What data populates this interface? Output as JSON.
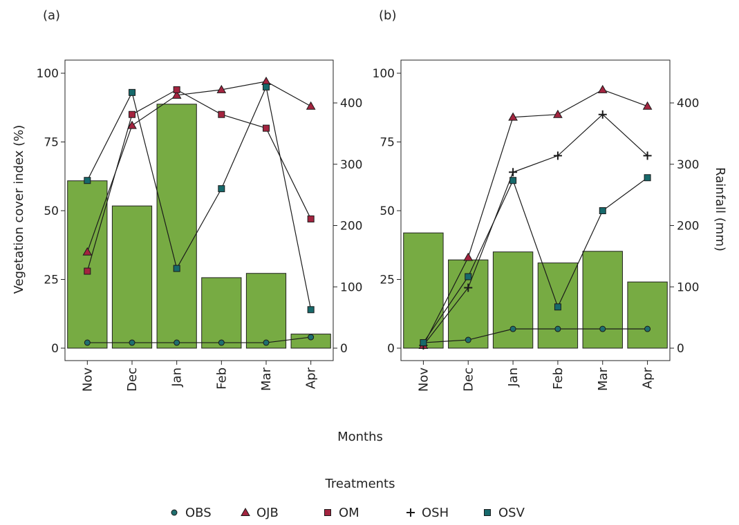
{
  "colors": {
    "bar_fill": "#77ab43",
    "bar_stroke": "#1e1e1e",
    "line": "#1a1a1a",
    "OBS": "#1f6f6f",
    "OJB": "#a3243f",
    "OM": "#a3243f",
    "OSH": "#1a1a1a",
    "OSV": "#17696b"
  },
  "xlabel": "Months",
  "ylabel_left": "Vegetation cover index (%)",
  "ylabel_right": "Rainfall (mm)",
  "legend": {
    "title": "Treatments",
    "items": [
      {
        "name": "OBS",
        "marker": "circle"
      },
      {
        "name": "OJB",
        "marker": "triangle"
      },
      {
        "name": "OM",
        "marker": "square"
      },
      {
        "name": "OSH",
        "marker": "plus"
      },
      {
        "name": "OSV",
        "marker": "square"
      }
    ]
  },
  "chart_data": [
    {
      "panel": "(a)",
      "type": "bar+line",
      "categories": [
        "Nov",
        "Dec",
        "Jan",
        "Feb",
        "Mar",
        "Apr"
      ],
      "ylim_left": [
        0,
        100
      ],
      "left_ticks": [
        0,
        25,
        50,
        75,
        100
      ],
      "ylim_right": [
        0,
        430
      ],
      "right_ticks": [
        0,
        100,
        200,
        300,
        400
      ],
      "rainfall": [
        273,
        232,
        398,
        115,
        122,
        23
      ],
      "series": [
        {
          "name": "OBS",
          "values": [
            2,
            2,
            2,
            2,
            2,
            4
          ]
        },
        {
          "name": "OJB",
          "values": [
            35,
            81,
            92,
            94,
            97,
            88
          ]
        },
        {
          "name": "OM",
          "values": [
            28,
            85,
            94,
            85,
            80,
            47
          ]
        },
        {
          "name": "OSV",
          "values": [
            61,
            93,
            29,
            58,
            95,
            14
          ]
        }
      ]
    },
    {
      "panel": "(b)",
      "type": "bar+line",
      "categories": [
        "Nov",
        "Dec",
        "Jan",
        "Feb",
        "Mar",
        "Apr"
      ],
      "ylim_left": [
        0,
        100
      ],
      "left_ticks": [
        0,
        25,
        50,
        75,
        100
      ],
      "ylim_right": [
        0,
        430
      ],
      "right_ticks": [
        0,
        100,
        200,
        300,
        400
      ],
      "rainfall": [
        188,
        144,
        157,
        139,
        158,
        108
      ],
      "series": [
        {
          "name": "OBS",
          "values": [
            2,
            3,
            7,
            7,
            7,
            7
          ]
        },
        {
          "name": "OJB",
          "values": [
            1,
            33,
            84,
            85,
            94,
            88
          ]
        },
        {
          "name": "OSH",
          "values": [
            1,
            22,
            64,
            70,
            85,
            70
          ]
        },
        {
          "name": "OSV",
          "values": [
            2,
            26,
            61,
            15,
            50,
            62
          ]
        }
      ]
    }
  ]
}
